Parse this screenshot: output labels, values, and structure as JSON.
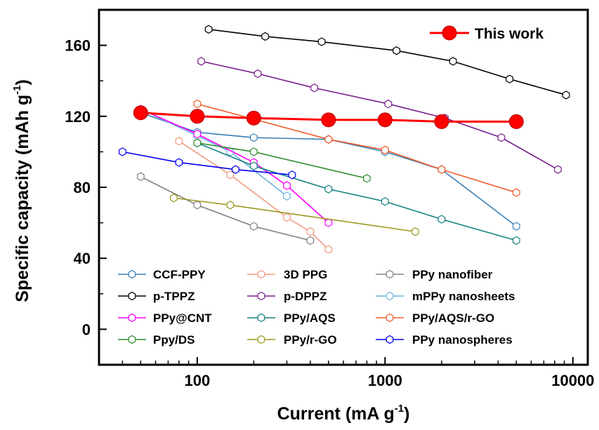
{
  "chart_data": {
    "type": "line",
    "xlabel": "Current (mA g",
    "xlabel_sup": "-1",
    "xlabel_end": ")",
    "ylabel": "Specific capacity (mAh g",
    "ylabel_sup": "-1",
    "ylabel_end": ")",
    "xscale": "log",
    "xlim": [
      30,
      12000
    ],
    "ylim": [
      -20,
      180
    ],
    "x_ticks": [
      100,
      1000,
      10000
    ],
    "x_tick_labels": [
      "100",
      "1000",
      "10000"
    ],
    "y_ticks": [
      0,
      40,
      80,
      120,
      160
    ],
    "y_tick_labels": [
      "0",
      "40",
      "80",
      "120",
      "160"
    ],
    "grid": false,
    "legend_top": {
      "position": "top-right",
      "entries": [
        "This work"
      ]
    },
    "legend_bottom": {
      "position": "bottom-center",
      "columns": 3
    },
    "series": [
      {
        "name": "This work",
        "color": "#ff0000",
        "marker": "filled-circle",
        "x": [
          50,
          100,
          200,
          500,
          1000,
          2000,
          5000
        ],
        "y": [
          122,
          120,
          119,
          118,
          118,
          117,
          117
        ]
      },
      {
        "name": "CCF-PPY",
        "color": "#3a7fb5",
        "marker": "open-hexagon",
        "x": [
          50,
          100,
          200,
          500,
          1000,
          2000,
          5000
        ],
        "y": [
          122,
          111,
          108,
          107,
          100,
          90,
          58
        ]
      },
      {
        "name": "3D PPG",
        "color": "#f09a7e",
        "marker": "open-hexagon",
        "x": [
          80,
          150,
          300,
          400,
          500
        ],
        "y": [
          106,
          87,
          63,
          55,
          45
        ]
      },
      {
        "name": "PPy nanofiber",
        "color": "#808080",
        "marker": "open-hexagon",
        "x": [
          50,
          100,
          200,
          400
        ],
        "y": [
          86,
          70,
          58,
          50
        ]
      },
      {
        "name": "p-TPPZ",
        "color": "#000000",
        "marker": "open-hexagon",
        "x": [
          115,
          230,
          460,
          1150,
          2300,
          4600,
          9200
        ],
        "y": [
          169,
          165,
          162,
          157,
          151,
          141,
          132
        ]
      },
      {
        "name": "p-DPPZ",
        "color": "#7a1f8c",
        "marker": "open-hexagon",
        "x": [
          105,
          210,
          420,
          1040,
          2080,
          4160,
          8320
        ],
        "y": [
          151,
          144,
          136,
          127,
          119,
          108,
          90
        ]
      },
      {
        "name": "mPPy nanosheets",
        "color": "#6fb3dc",
        "marker": "open-hexagon",
        "x": [
          50,
          100,
          150,
          300
        ],
        "y": [
          124,
          109,
          100,
          75
        ]
      },
      {
        "name": "PPy@CNT",
        "color": "#ff00ff",
        "marker": "open-hexagon",
        "x": [
          50,
          100,
          200,
          300,
          500
        ],
        "y": [
          124,
          110,
          94,
          81,
          60
        ]
      },
      {
        "name": "PPy/AQS",
        "color": "#148080",
        "marker": "open-hexagon",
        "x": [
          100,
          200,
          500,
          1000,
          2000,
          5000
        ],
        "y": [
          105,
          92,
          79,
          72,
          62,
          50
        ]
      },
      {
        "name": "PPy/AQS/r-GO",
        "color": "#f05a28",
        "marker": "open-hexagon",
        "x": [
          100,
          500,
          1000,
          2000,
          5000
        ],
        "y": [
          127,
          107,
          101,
          90,
          77
        ]
      },
      {
        "name": "Ppy/DS",
        "color": "#2e8b2e",
        "marker": "open-hexagon",
        "x": [
          100,
          200,
          800
        ],
        "y": [
          105,
          100,
          85
        ]
      },
      {
        "name": "PPy/r-GO",
        "color": "#9a9a1e",
        "marker": "open-hexagon",
        "x": [
          75,
          150,
          1450
        ],
        "y": [
          74,
          70,
          55
        ]
      },
      {
        "name": "PPy nanospheres",
        "color": "#0000ee",
        "marker": "open-hexagon",
        "x": [
          40,
          80,
          160,
          320
        ],
        "y": [
          100,
          94,
          90,
          87
        ]
      }
    ]
  }
}
